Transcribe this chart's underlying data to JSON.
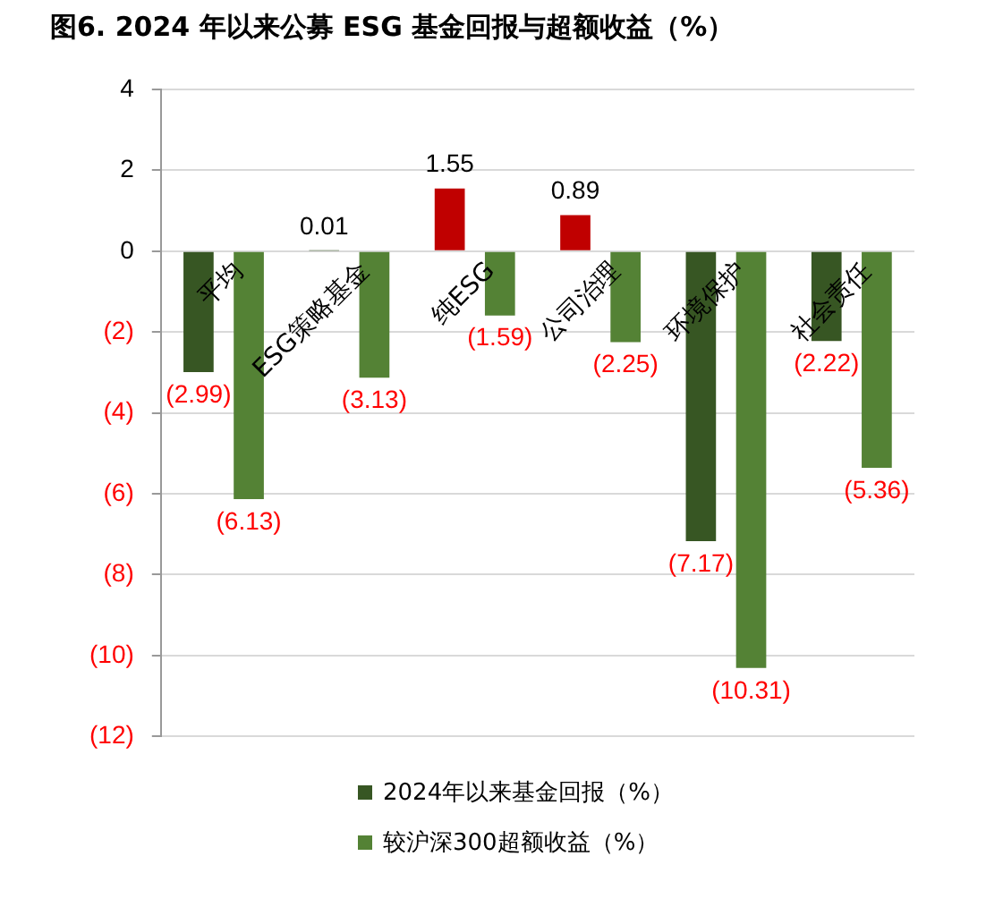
{
  "chart_data": {
    "type": "bar",
    "title": "图6. 2024 年以来公募 ESG 基金回报与超额收益（%）",
    "categories": [
      "平均",
      "ESG策略基金",
      "纯ESG",
      "公司治理",
      "环境保护",
      "社会责任"
    ],
    "series": [
      {
        "name": "2024年以来基金回报（%）",
        "color": "#375623",
        "colors": [
          "#375623",
          "#375623",
          "#c00000",
          "#c00000",
          "#375623",
          "#375623"
        ],
        "values": [
          -2.99,
          0.01,
          1.55,
          0.89,
          -7.17,
          -2.22
        ],
        "value_labels": [
          "(2.99)",
          "0.01",
          "1.55",
          "0.89",
          "(7.17)",
          "(2.22)"
        ]
      },
      {
        "name": "较沪深300超额收益（%）",
        "color": "#548235",
        "values": [
          -6.13,
          -3.13,
          -1.59,
          -2.25,
          -10.31,
          -5.36
        ],
        "value_labels": [
          "(6.13)",
          "(3.13)",
          "(1.59)",
          "(2.25)",
          "(10.31)",
          "(5.36)"
        ]
      }
    ],
    "ylim": [
      -12,
      4
    ],
    "yticks": [
      4,
      2,
      0,
      {
        "value": -2,
        "label": "(2)"
      },
      {
        "value": -4,
        "label": "(4)"
      },
      {
        "value": -6,
        "label": "(6)"
      },
      {
        "value": -8,
        "label": "(8)"
      },
      {
        "value": -10,
        "label": "(10)"
      },
      {
        "value": -12,
        "label": "(12)"
      }
    ],
    "grid": "y",
    "legend": "bottom"
  }
}
